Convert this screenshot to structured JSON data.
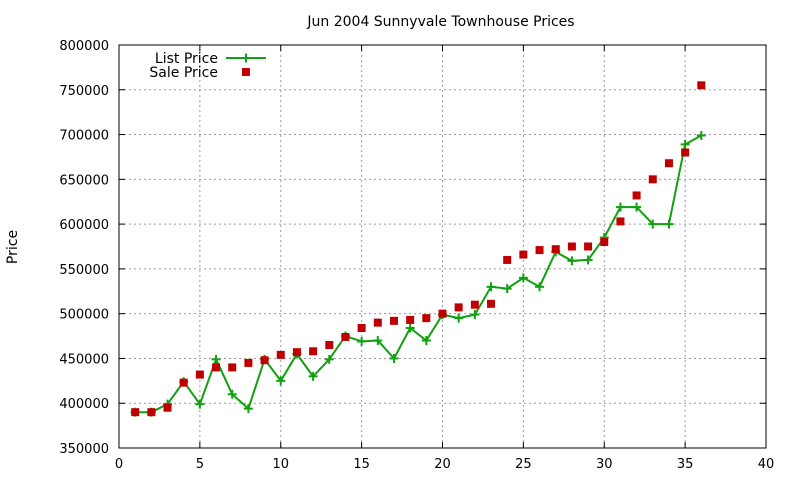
{
  "chart_data": {
    "type": "line",
    "title": "Jun 2004 Sunnyvale Townhouse Prices",
    "xlabel": "",
    "ylabel": "Price",
    "xlim": [
      0,
      40
    ],
    "ylim": [
      350000,
      800000
    ],
    "x_ticks": [
      0,
      5,
      10,
      15,
      20,
      25,
      30,
      35,
      40
    ],
    "y_ticks": [
      350000,
      400000,
      450000,
      500000,
      550000,
      600000,
      650000,
      700000,
      750000,
      800000
    ],
    "grid": true,
    "legend_position": "top-left",
    "series": [
      {
        "name": "List Price",
        "style": "linespoints",
        "marker": "plus",
        "color": "#11a011",
        "points": [
          [
            1,
            390000
          ],
          [
            2,
            390000
          ],
          [
            3,
            399000
          ],
          [
            4,
            424000
          ],
          [
            5,
            399000
          ],
          [
            6,
            449000
          ],
          [
            7,
            410000
          ],
          [
            8,
            394000
          ],
          [
            9,
            449000
          ],
          [
            10,
            425000
          ],
          [
            11,
            455000
          ],
          [
            12,
            430000
          ],
          [
            13,
            449000
          ],
          [
            14,
            475000
          ],
          [
            15,
            469000
          ],
          [
            16,
            470000
          ],
          [
            17,
            450000
          ],
          [
            18,
            484000
          ],
          [
            19,
            470000
          ],
          [
            20,
            499000
          ],
          [
            21,
            495000
          ],
          [
            22,
            499000
          ],
          [
            23,
            530000
          ],
          [
            24,
            528000
          ],
          [
            25,
            540000
          ],
          [
            26,
            530000
          ],
          [
            27,
            569000
          ],
          [
            28,
            559000
          ],
          [
            29,
            560000
          ],
          [
            30,
            585000
          ],
          [
            31,
            619000
          ],
          [
            32,
            619000
          ],
          [
            33,
            600000
          ],
          [
            34,
            600000
          ],
          [
            35,
            689000
          ],
          [
            36,
            699000
          ]
        ]
      },
      {
        "name": "Sale Price",
        "style": "points",
        "marker": "square",
        "color": "#c00000",
        "points": [
          [
            1,
            390000
          ],
          [
            2,
            390000
          ],
          [
            3,
            395000
          ],
          [
            4,
            423000
          ],
          [
            5,
            432000
          ],
          [
            6,
            440000
          ],
          [
            7,
            440000
          ],
          [
            8,
            445000
          ],
          [
            9,
            448000
          ],
          [
            10,
            454000
          ],
          [
            11,
            457000
          ],
          [
            12,
            458000
          ],
          [
            13,
            465000
          ],
          [
            14,
            474000
          ],
          [
            15,
            484000
          ],
          [
            16,
            490000
          ],
          [
            17,
            492000
          ],
          [
            18,
            493000
          ],
          [
            19,
            495000
          ],
          [
            20,
            500000
          ],
          [
            21,
            507000
          ],
          [
            22,
            510000
          ],
          [
            23,
            511000
          ],
          [
            24,
            560000
          ],
          [
            25,
            566000
          ],
          [
            26,
            571000
          ],
          [
            27,
            572000
          ],
          [
            28,
            575000
          ],
          [
            29,
            575000
          ],
          [
            30,
            580000
          ],
          [
            31,
            603000
          ],
          [
            32,
            632000
          ],
          [
            33,
            650000
          ],
          [
            34,
            668000
          ],
          [
            35,
            680000
          ],
          [
            36,
            755000
          ]
        ]
      }
    ]
  }
}
